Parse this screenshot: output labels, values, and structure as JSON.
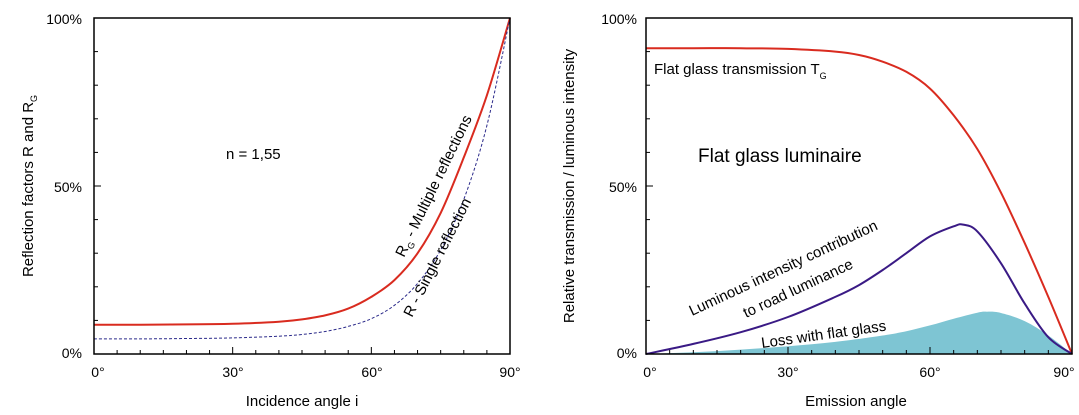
{
  "chart_data": [
    {
      "type": "line",
      "xlabel": "Incidence angle i",
      "ylabel_main": "Reflection factors R and R",
      "ylabel_sub": "G",
      "x_ticks": [
        "0°",
        "30°",
        "60°",
        "90°"
      ],
      "y_ticks": [
        "0%",
        "50%",
        "100%"
      ],
      "xlim": [
        0,
        90
      ],
      "ylim": [
        0,
        100
      ],
      "annotations": {
        "n_value": "n = 1,55",
        "rg_main": "R",
        "rg_sub": "G",
        "rg_rest": " - Multiple reflections",
        "r_single": "R - Single reflection"
      },
      "colors": {
        "multiple": "#d92b1f",
        "single": "#2b2a8a"
      },
      "series": [
        {
          "name": "R - Multiple reflections",
          "style": "solid",
          "x": [
            0,
            10,
            20,
            30,
            40,
            45,
            50,
            55,
            60,
            65,
            70,
            75,
            80,
            85,
            90
          ],
          "y": [
            8.7,
            8.7,
            8.8,
            9.0,
            9.6,
            10.3,
            11.5,
            13.5,
            17.0,
            22.0,
            30.0,
            42.0,
            58.5,
            77.0,
            100
          ]
        },
        {
          "name": "R - Single reflection",
          "style": "dashed",
          "x": [
            0,
            10,
            20,
            30,
            40,
            45,
            50,
            55,
            60,
            65,
            70,
            75,
            80,
            85,
            90
          ],
          "y": [
            4.5,
            4.5,
            4.6,
            4.8,
            5.3,
            5.8,
            6.7,
            8.2,
            10.5,
            14.5,
            21.0,
            31.0,
            46.0,
            68.0,
            100
          ]
        }
      ]
    },
    {
      "type": "line",
      "xlabel": "Emission angle",
      "ylabel": "Relative transmission / luminous intensity",
      "x_ticks": [
        "0°",
        "30°",
        "60°",
        "90°"
      ],
      "y_ticks": [
        "0%",
        "50%",
        "100%"
      ],
      "xlim": [
        0,
        90
      ],
      "ylim": [
        0,
        100
      ],
      "annotations": {
        "title_in_plot": "Flat glass luminaire",
        "transmission_main": "Flat glass transmission T",
        "transmission_sub": "G",
        "contribution_line1": "Luminous intensity contribution",
        "contribution_line2": "to road luminance",
        "loss": "Loss with flat glass"
      },
      "colors": {
        "transmission": "#d92b1f",
        "contribution": "#3a1a85",
        "loss_fill": "#7ec5d3"
      },
      "series": [
        {
          "name": "Flat glass transmission TG",
          "x": [
            0,
            10,
            20,
            30,
            40,
            45,
            50,
            55,
            60,
            65,
            70,
            75,
            80,
            85,
            90
          ],
          "y": [
            91.0,
            91.0,
            91.0,
            90.8,
            90.0,
            89.0,
            87.0,
            84.0,
            79.0,
            71.0,
            61.0,
            48.0,
            33.0,
            17.0,
            0
          ]
        },
        {
          "name": "Luminous intensity contribution to road luminance",
          "x": [
            0,
            10,
            20,
            30,
            40,
            45,
            50,
            55,
            60,
            65,
            67,
            70,
            75,
            80,
            85,
            90
          ],
          "y": [
            0,
            3.0,
            6.5,
            11.0,
            17.0,
            20.5,
            25.0,
            30.0,
            35.0,
            38.0,
            38.5,
            36.5,
            27.0,
            15.0,
            5.0,
            0
          ]
        },
        {
          "name": "Loss with flat glass",
          "fill": true,
          "x": [
            0,
            10,
            20,
            30,
            40,
            50,
            55,
            60,
            65,
            70,
            72,
            75,
            80,
            85,
            90
          ],
          "y": [
            0,
            0.5,
            1.3,
            2.3,
            3.6,
            5.5,
            6.8,
            8.5,
            10.5,
            12.3,
            12.6,
            12.2,
            9.8,
            5.5,
            0
          ]
        }
      ]
    }
  ]
}
